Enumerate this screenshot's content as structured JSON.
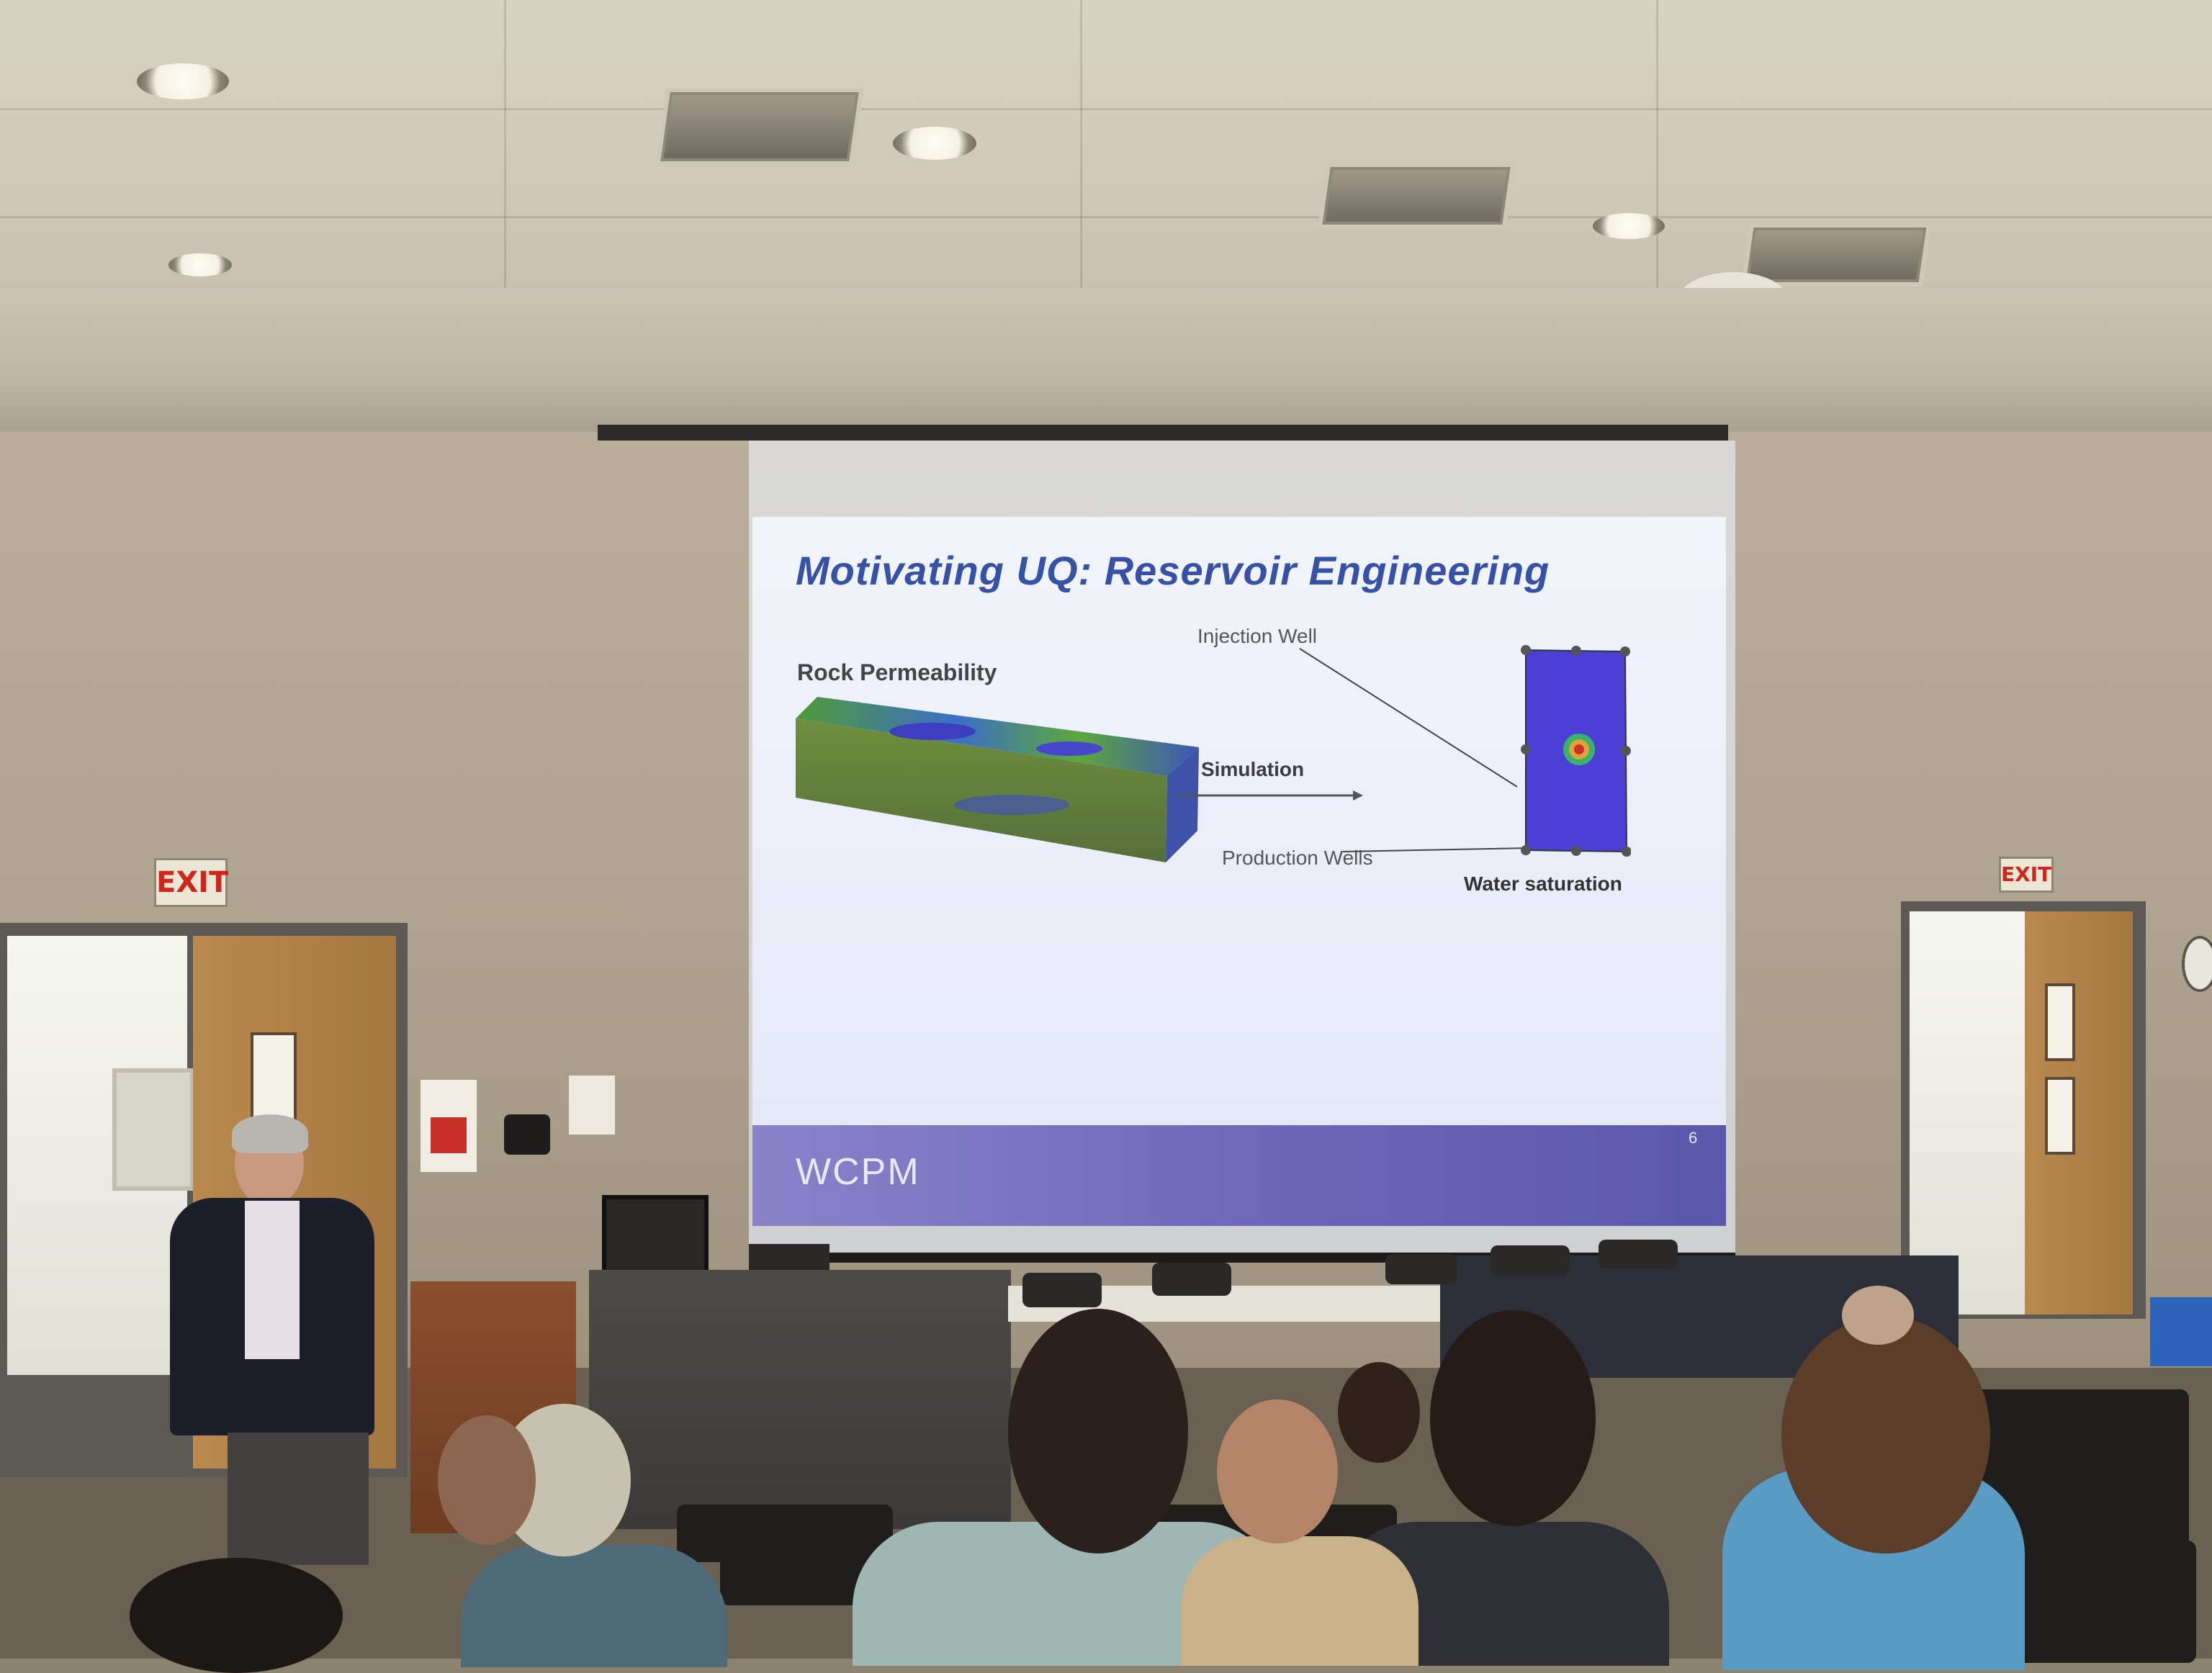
{
  "slide": {
    "title": "Motivating UQ: Reservoir Engineering",
    "rock_label": "Rock Permeability",
    "arrow_label": "Simulation",
    "injection_label": "Injection Well",
    "production_label": "Production Wells",
    "saturation_label": "Water saturation",
    "logo_text": "WCPM",
    "page_number": "6"
  },
  "signs": {
    "exit_left": "EXIT",
    "exit_right": "EXIT"
  },
  "colors": {
    "slide_title": "#3551a8",
    "footer_bar": "#6c66b8",
    "water_blue": "#4b3fd6",
    "exit_red": "#d0251b"
  }
}
